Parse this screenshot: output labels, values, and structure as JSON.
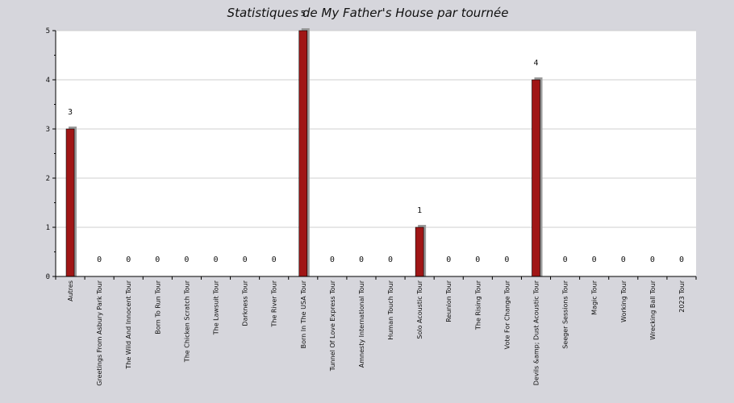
{
  "chart_data": {
    "type": "bar",
    "title": "Statistiques de My Father's House par tournée",
    "categories": [
      "Autres",
      "Greetings From Asbury Park Tour",
      "The Wild And Innocent Tour",
      "Born To Run Tour",
      "The Chicken Scratch Tour",
      "The Lawsuit Tour",
      "Darkness Tour",
      "The River Tour",
      "Born In The USA Tour",
      "Tunnel Of Love Express Tour",
      "Amnesty International Tour",
      "Human Touch Tour",
      "Solo Acoustic Tour",
      "Reunion Tour",
      "The Rising Tour",
      "Vote For Change Tour",
      "Devils &amp; Dust Acoustic Tour",
      "Seeger Sessions Tour",
      "Magic Tour",
      "Working Tour",
      "Wrecking Ball Tour",
      "2023 Tour"
    ],
    "values": [
      3,
      0,
      0,
      0,
      0,
      0,
      0,
      0,
      5,
      0,
      0,
      0,
      1,
      0,
      0,
      0,
      4,
      0,
      0,
      0,
      0,
      0
    ],
    "data_labels": [
      "3",
      "0",
      "0",
      "0",
      "0",
      "0",
      "0",
      "0",
      "5",
      "0",
      "0",
      "0",
      "1",
      "0",
      "0",
      "0",
      "4",
      "0",
      "0",
      "0",
      "0",
      "0"
    ],
    "ylim": [
      0,
      5
    ],
    "yticks": [
      "0",
      "1",
      "2",
      "3",
      "4",
      "5"
    ],
    "xlabel": "",
    "ylabel": "",
    "grid": true,
    "colors": {
      "bar": "#a01616",
      "bar_shadow": "#9a9a9a",
      "plot_bg": "#ffffff",
      "page_bg": "#d6d6dc",
      "grid": "#cfcfcf"
    }
  }
}
